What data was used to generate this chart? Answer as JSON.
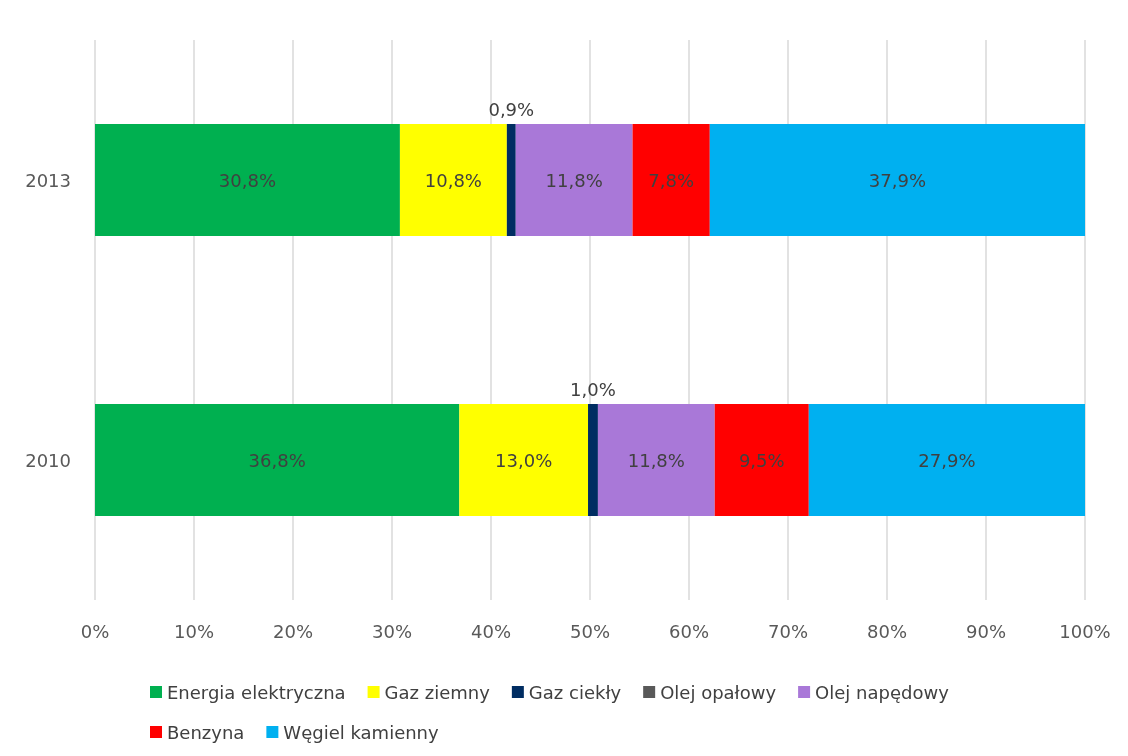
{
  "chart_data": {
    "type": "bar",
    "orientation": "horizontal",
    "stacked": true,
    "categories": [
      "2013",
      "2010"
    ],
    "xlim": [
      0,
      100
    ],
    "xticks": [
      {
        "value": 0,
        "label": "0%"
      },
      {
        "value": 10,
        "label": "10%"
      },
      {
        "value": 20,
        "label": "20%"
      },
      {
        "value": 30,
        "label": "30%"
      },
      {
        "value": 40,
        "label": "40%"
      },
      {
        "value": 50,
        "label": "50%"
      },
      {
        "value": 60,
        "label": "60%"
      },
      {
        "value": 70,
        "label": "70%"
      },
      {
        "value": 80,
        "label": "80%"
      },
      {
        "value": 90,
        "label": "90%"
      },
      {
        "value": 100,
        "label": "100%"
      }
    ],
    "grid": "x",
    "legend": "bottom",
    "series": [
      {
        "name": "Energia elektryczna",
        "color": "#00b050",
        "values": [
          30.8,
          36.8
        ],
        "value_labels": [
          "30,8%",
          "36,8%"
        ]
      },
      {
        "name": "Gaz ziemny",
        "color": "#ffff00",
        "values": [
          10.8,
          13.0
        ],
        "value_labels": [
          "10,8%",
          "13,0%"
        ]
      },
      {
        "name": "Gaz ciekły",
        "color": "#002d62",
        "values": [
          0.9,
          1.0
        ],
        "value_labels": [
          "0,9%",
          "1,0%"
        ]
      },
      {
        "name": "Olej opałowy",
        "color": "#595959",
        "values": [
          0,
          0
        ],
        "value_labels": [
          null,
          null
        ]
      },
      {
        "name": "Olej napędowy",
        "color": "#a978d8",
        "values": [
          11.8,
          11.8
        ],
        "value_labels": [
          "11,8%",
          "11,8%"
        ]
      },
      {
        "name": "Benzyna",
        "color": "#ff0000",
        "values": [
          7.8,
          9.5
        ],
        "value_labels": [
          "7,8%",
          "9,5%"
        ]
      },
      {
        "name": "Węgiel kamienny",
        "color": "#00b0f0",
        "values": [
          37.9,
          27.9
        ],
        "value_labels": [
          "37,9%",
          "27,9%"
        ]
      }
    ]
  }
}
